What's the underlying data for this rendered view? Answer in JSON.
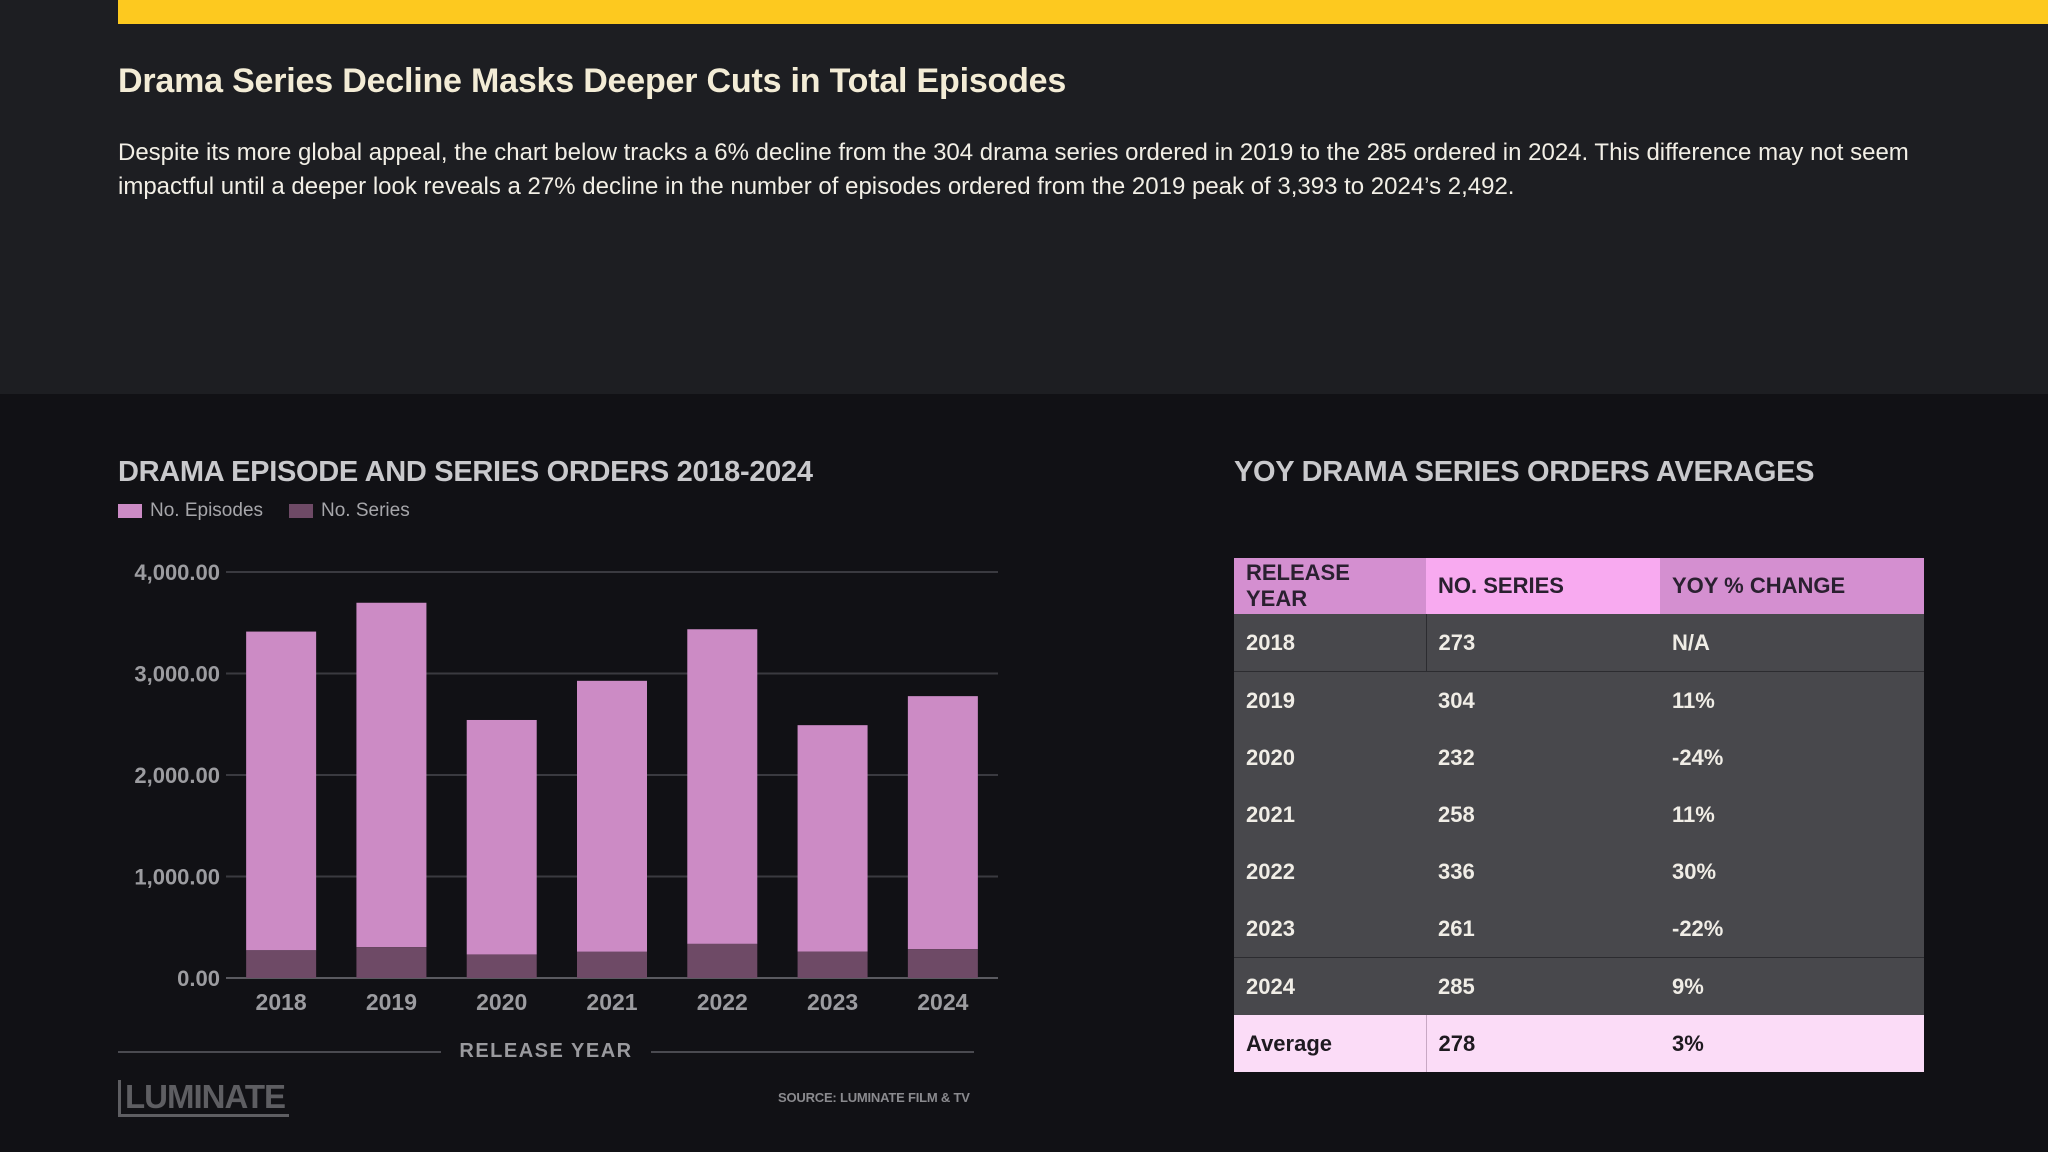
{
  "header": {
    "headline": "Drama Series Decline Masks Deeper Cuts in Total Episodes",
    "intro": "Despite its more global appeal, the chart below tracks a 6% decline from the 304 drama series ordered in 2019 to the 285 ordered in 2024. This difference may not seem impactful until a deeper look reveals a 27% decline in the number of episodes ordered from the 2019 peak of 3,393 to 2024’s 2,492."
  },
  "colors": {
    "accent": "#fdc91f",
    "episodes": "#cc8bc5",
    "series": "#6e4a66"
  },
  "chart_data": {
    "type": "bar",
    "stacked": true,
    "title": "DRAMA EPISODE AND SERIES ORDERS 2018-2024",
    "xlabel": "RELEASE YEAR",
    "ylabel": "",
    "categories": [
      "2018",
      "2019",
      "2020",
      "2021",
      "2022",
      "2023",
      "2024"
    ],
    "series": [
      {
        "name": "No. Series",
        "values": [
          273,
          304,
          232,
          258,
          336,
          261,
          285
        ]
      },
      {
        "name": "No. Episodes",
        "values": [
          3140,
          3393,
          2310,
          2670,
          3100,
          2230,
          2492
        ]
      }
    ],
    "yticks": [
      "0.00",
      "1,000.00",
      "2,000.00",
      "3,000.00",
      "4,000.00"
    ],
    "ylim": [
      0,
      4000
    ],
    "grid": true,
    "legend": "top-left"
  },
  "legend": {
    "episodes_label": "No. Episodes",
    "series_label": "No. Series"
  },
  "footer": {
    "logo": "LUMINATE",
    "source": "SOURCE: LUMINATE FILM & TV"
  },
  "table": {
    "title": "YOY DRAMA SERIES ORDERS AVERAGES",
    "headers": [
      "RELEASE YEAR",
      "NO. SERIES",
      "YOY % CHANGE"
    ],
    "rows": [
      [
        "2018",
        "273",
        "N/A"
      ],
      [
        "2019",
        "304",
        "11%"
      ],
      [
        "2020",
        "232",
        "-24%"
      ],
      [
        "2021",
        "258",
        "11%"
      ],
      [
        "2022",
        "336",
        "30%"
      ],
      [
        "2023",
        "261",
        "-22%"
      ],
      [
        "2024",
        "285",
        "9%"
      ]
    ],
    "average": [
      "Average",
      "278",
      "3%"
    ]
  }
}
